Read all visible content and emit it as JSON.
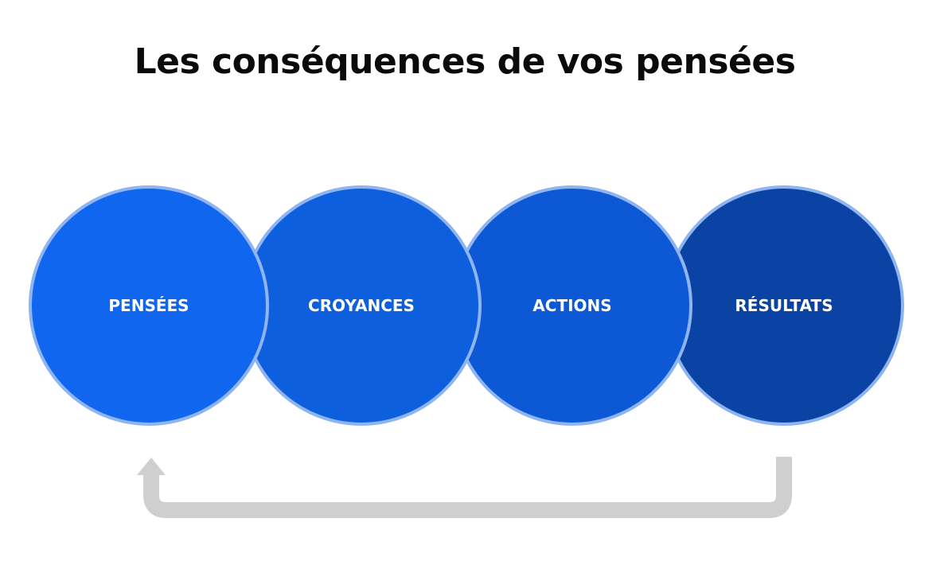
{
  "title": "Les conséquences de vos pensées",
  "steps": [
    {
      "label": "PENSÉES",
      "color": "#1066EE"
    },
    {
      "label": "CROYANCES",
      "color": "#0E5FDE"
    },
    {
      "label": "ACTIONS",
      "color": "#0C58D5"
    },
    {
      "label": "RÉSULTATS",
      "color": "#0A43A3"
    }
  ],
  "colors": {
    "ring": "#8FB5F0",
    "arrow": "#CFCFCF",
    "title": "#0a0a0a"
  },
  "arrow_icon": "return-arrow-icon"
}
